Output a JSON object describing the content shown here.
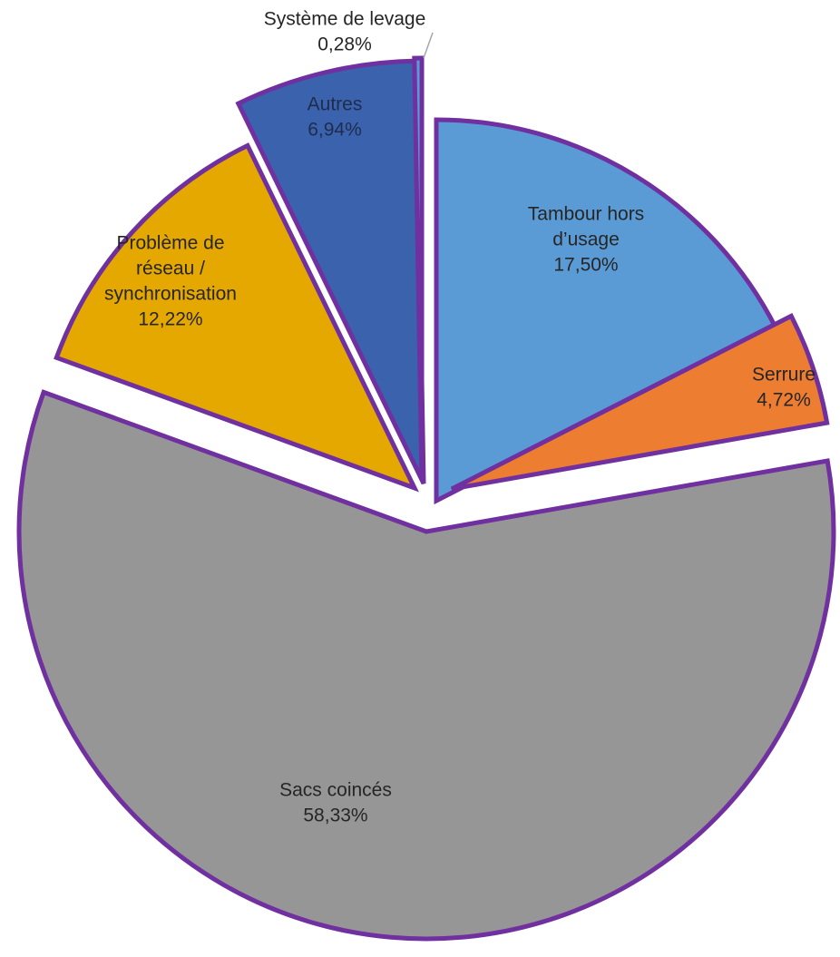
{
  "chart_data": {
    "type": "pie",
    "title": "",
    "start_angle_deg": 0,
    "direction": "clockwise",
    "exploded": true,
    "border_color": "#7030a0",
    "slices": [
      {
        "name": "Tambour hors d’usage",
        "label_lines": [
          "Tambour  hors",
          "d’usage"
        ],
        "value_label": "17,50%",
        "value": 17.5,
        "color": "#5b9bd5"
      },
      {
        "name": "Serrure",
        "label_lines": [
          "Serrure"
        ],
        "value_label": "4,72%",
        "value": 4.72,
        "color": "#ed7d31"
      },
      {
        "name": "Sacs coincés",
        "label_lines": [
          "Sacs coincés"
        ],
        "value_label": "58,33%",
        "value": 58.33,
        "color": "#969696"
      },
      {
        "name": "Problème de réseau / synchronisation",
        "label_lines": [
          "Problème de",
          "réseau /",
          "synchronisation"
        ],
        "value_label": "12,22%",
        "value": 12.22,
        "color": "#e5a800"
      },
      {
        "name": "Autres",
        "label_lines": [
          "Autres"
        ],
        "value_label": "6,94%",
        "value": 6.94,
        "color": "#3a62ad"
      },
      {
        "name": "Système de levage",
        "label_lines": [
          "Système de levage"
        ],
        "value_label": "0,28%",
        "value": 0.28,
        "color": "#5b9bd5"
      }
    ]
  }
}
